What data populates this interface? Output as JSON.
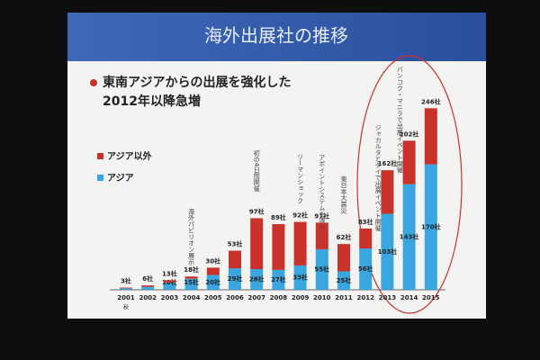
{
  "chart_data": {
    "type": "stacked-bar",
    "title": "海外出展社の推移",
    "subtitle": [
      "東南アジアからの出展を強化した",
      "2012年以降急増"
    ],
    "categories": [
      "2001",
      "2002",
      "2003",
      "2004",
      "2005",
      "2006",
      "2007",
      "2008",
      "2009",
      "2010",
      "2011",
      "2012",
      "2013",
      "2014",
      "2015"
    ],
    "category_note": "秋",
    "series": [
      {
        "name": "アジア",
        "color": "#3aa6df",
        "values": [
          2,
          4,
          10,
          15,
          20,
          29,
          28,
          27,
          33,
          55,
          25,
          56,
          103,
          143,
          170
        ],
        "value_labels": [
          null,
          null,
          "10社",
          "15社",
          "20社",
          "29社",
          "28社",
          "27社",
          "33社",
          "55社",
          "25社",
          "56社",
          "103社",
          "143社",
          "170社"
        ]
      },
      {
        "name": "アジア以外",
        "color": "#c8322b",
        "values": [
          1,
          2,
          3,
          3,
          10,
          24,
          69,
          62,
          59,
          36,
          37,
          27,
          59,
          59,
          76
        ]
      }
    ],
    "totals": {
      "values": [
        3,
        6,
        13,
        18,
        30,
        53,
        97,
        89,
        92,
        91,
        62,
        83,
        162,
        202,
        246
      ],
      "value_labels": [
        "3社",
        "6社",
        "13社",
        "18社",
        "30社",
        "53社",
        "97社",
        "89社",
        "92社",
        "91社",
        "62社",
        "83社",
        "162社",
        "202社",
        "246社"
      ]
    },
    "annotations": [
      "海外パビリオン展示",
      "初の4日間開催",
      "リーマンショック",
      "アポイントシステムを導入",
      "東日本大震災",
      "ジャカルタとタイで出展イベント開催",
      "バンコク・マニラで出展イベント開催"
    ],
    "ylim": [
      0,
      250
    ]
  }
}
